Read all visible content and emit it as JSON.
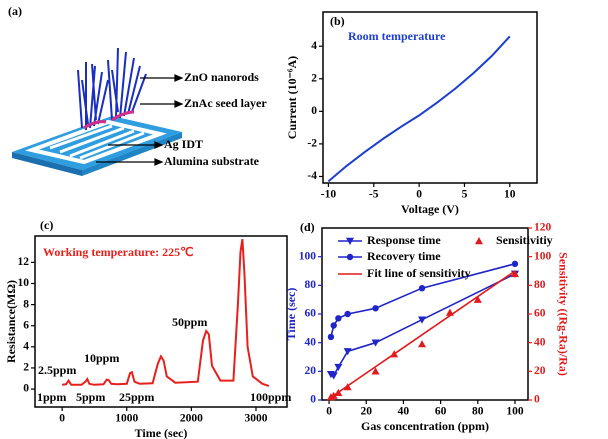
{
  "schematic": {
    "label": "(a)",
    "annotations": [
      "ZnO nanorods",
      "ZnAc seed layer",
      "Ag IDT",
      "Alumina substrate"
    ]
  },
  "chart_data": [
    {
      "type": "line",
      "label": "(b)",
      "xlabel": "Voltage (V)",
      "ylabel": "Current (10⁻⁶A)",
      "annotations": [
        {
          "text": "Room temperature",
          "color": "#1c3fd0"
        }
      ],
      "x": [
        -10,
        -8,
        -6,
        -4,
        -2,
        0,
        2,
        4,
        6,
        8,
        10
      ],
      "series": [
        {
          "color": "#1c3fd0",
          "values": [
            -4.3,
            -3.35,
            -2.5,
            -1.7,
            -0.95,
            -0.25,
            0.55,
            1.4,
            2.35,
            3.4,
            4.6
          ]
        }
      ],
      "xlim": [
        -10.6,
        13
      ],
      "ylim": [
        -4.4,
        6.1
      ],
      "xticks": [
        -10,
        -5,
        0,
        5,
        10
      ],
      "yticks": [
        -4,
        -2,
        0,
        2,
        4
      ]
    },
    {
      "type": "line",
      "label": "(c)",
      "xlabel": "Time (sec)",
      "ylabel": "Resistance(MΩ)",
      "annotations": [
        {
          "text": "Working temperature: 225℃",
          "color": "#e8201c"
        },
        {
          "text": "2.5ppm",
          "color": "#000"
        },
        {
          "text": "10ppm",
          "color": "#000"
        },
        {
          "text": "50ppm",
          "color": "#000"
        },
        {
          "text": "1ppm",
          "color": "#000"
        },
        {
          "text": "5ppm",
          "color": "#000"
        },
        {
          "text": "25ppm",
          "color": "#000"
        },
        {
          "text": "100ppm",
          "color": "#000"
        }
      ],
      "x": [
        0,
        60,
        100,
        140,
        200,
        300,
        360,
        390,
        420,
        500,
        640,
        690,
        720,
        760,
        850,
        1000,
        1050,
        1080,
        1120,
        1200,
        1400,
        1480,
        1530,
        1570,
        1620,
        1750,
        2100,
        2180,
        2230,
        2270,
        2320,
        2450,
        2650,
        2720,
        2760,
        2790,
        2820,
        2870,
        2950,
        3100,
        3200
      ],
      "series": [
        {
          "color": "#e8201c",
          "values": [
            0.4,
            0.45,
            0.8,
            0.4,
            0.4,
            0.4,
            0.7,
            0.95,
            0.5,
            0.4,
            0.45,
            0.9,
            0.85,
            0.5,
            0.45,
            0.5,
            1.5,
            1.6,
            0.7,
            0.5,
            0.55,
            2.4,
            3.1,
            2.7,
            1.2,
            0.6,
            0.7,
            4.6,
            5.5,
            5.2,
            2.2,
            0.8,
            0.8,
            8,
            13,
            14.2,
            11,
            4,
            1.2,
            0.5,
            0.3
          ]
        }
      ],
      "xlim": [
        -420,
        3480
      ],
      "ylim": [
        -1.7,
        14.5
      ],
      "xticks": [
        0,
        1000,
        2000,
        3000
      ],
      "yticks": [
        0,
        2,
        4,
        6,
        8,
        10,
        12
      ]
    },
    {
      "type": "line",
      "label": "(d)",
      "xlabel": "Gas concentration (ppm)",
      "ylabel": "Time (sec)",
      "y2label": "Sensitivity ((Rg-Ra)/Ra)",
      "y_color": "#1f25c8",
      "y2_color": "#e31a1c",
      "series": [
        {
          "name": "Response time",
          "color": "#1f25c8",
          "marker": "triangle-down",
          "line": true,
          "x": [
            1,
            2.5,
            5,
            10,
            25,
            50,
            100
          ],
          "values": [
            18,
            17,
            23,
            34,
            40,
            56,
            88
          ]
        },
        {
          "name": "Recovery time",
          "color": "#1f25c8",
          "marker": "circle",
          "line": true,
          "x": [
            1,
            2.5,
            5,
            10,
            25,
            50,
            100
          ],
          "values": [
            44,
            52,
            57,
            60,
            64,
            78,
            95
          ]
        },
        {
          "name": "Sensitivitiy",
          "color": "#e31a1c",
          "marker": "triangle",
          "line": false,
          "axis": "y2",
          "x": [
            1,
            2.5,
            5,
            10,
            25,
            35,
            50,
            65,
            80,
            100
          ],
          "values": [
            2,
            3,
            5,
            9,
            20,
            32,
            39,
            61,
            70,
            88
          ]
        },
        {
          "name": "Fit line of sensitivity",
          "color": "#e31a1c",
          "line": true,
          "axis": "y2",
          "x": [
            0,
            100
          ],
          "values": [
            1,
            90
          ]
        }
      ],
      "xlim": [
        -3.8,
        107
      ],
      "ylim": [
        0,
        120
      ],
      "y2lim": [
        0,
        120
      ],
      "xticks": [
        0,
        20,
        40,
        60,
        80,
        100
      ],
      "yticks": [
        0,
        20,
        40,
        60,
        80,
        100
      ],
      "y2ticks": [
        0,
        20,
        40,
        60,
        80,
        100,
        120
      ]
    }
  ]
}
